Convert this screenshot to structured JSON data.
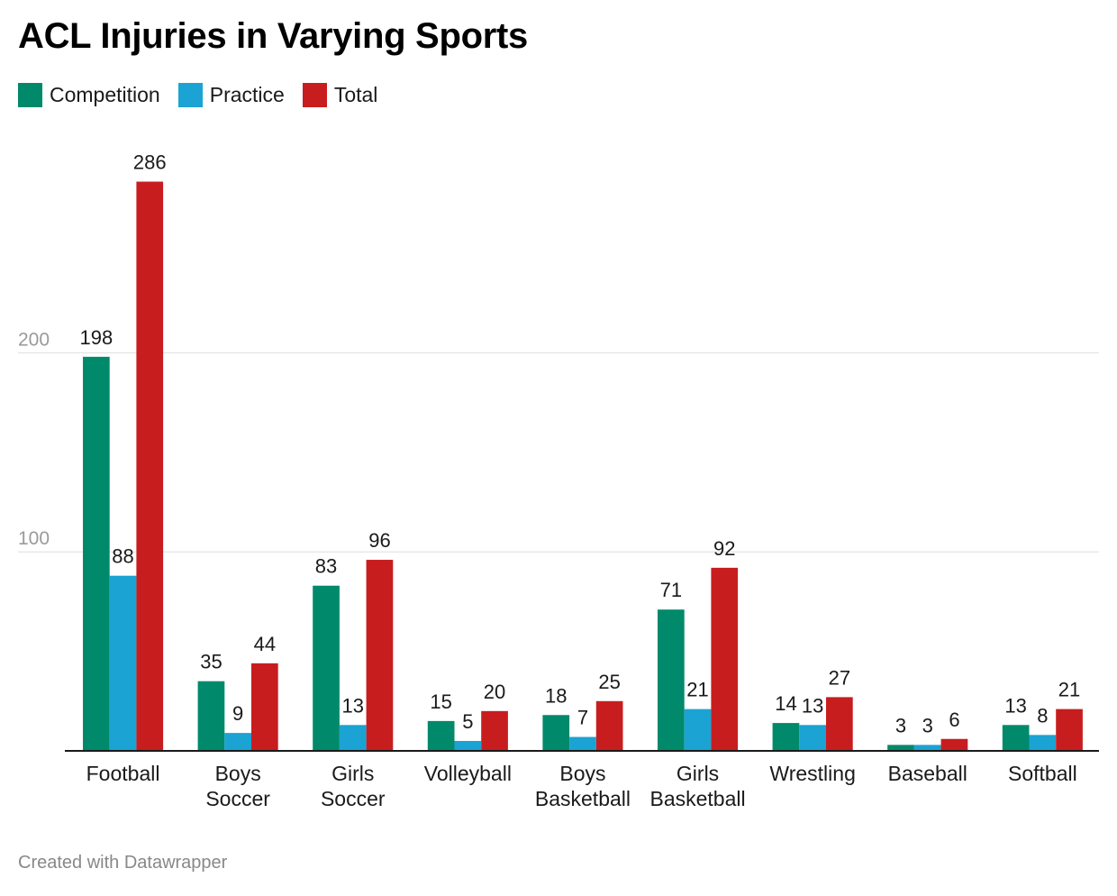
{
  "title": "ACL Injuries in Varying Sports",
  "footer": "Created with Datawrapper",
  "legend": [
    {
      "name": "Competition",
      "color": "#008a6b"
    },
    {
      "name": "Practice",
      "color": "#1ba3d3"
    },
    {
      "name": "Total",
      "color": "#c81d1f"
    }
  ],
  "chart_data": {
    "type": "bar",
    "title": "ACL Injuries in Varying Sports",
    "categories": [
      [
        "Football"
      ],
      [
        "Boys",
        "Soccer"
      ],
      [
        "Girls",
        "Soccer"
      ],
      [
        "Volleyball"
      ],
      [
        "Boys",
        "Basketball"
      ],
      [
        "Girls",
        "Basketball"
      ],
      [
        "Wrestling"
      ],
      [
        "Baseball"
      ],
      [
        "Softball"
      ]
    ],
    "series": [
      {
        "name": "Competition",
        "color": "#008a6b",
        "values": [
          198,
          35,
          83,
          15,
          18,
          71,
          14,
          3,
          13
        ]
      },
      {
        "name": "Practice",
        "color": "#1ba3d3",
        "values": [
          88,
          9,
          13,
          5,
          7,
          21,
          13,
          3,
          8
        ]
      },
      {
        "name": "Total",
        "color": "#c81d1f",
        "values": [
          286,
          44,
          96,
          20,
          25,
          92,
          27,
          6,
          21
        ]
      }
    ],
    "yticks": [
      100,
      200
    ],
    "ylim": [
      0,
      300
    ],
    "grid": true,
    "legend_position": "top-left",
    "xlabel": "",
    "ylabel": ""
  }
}
